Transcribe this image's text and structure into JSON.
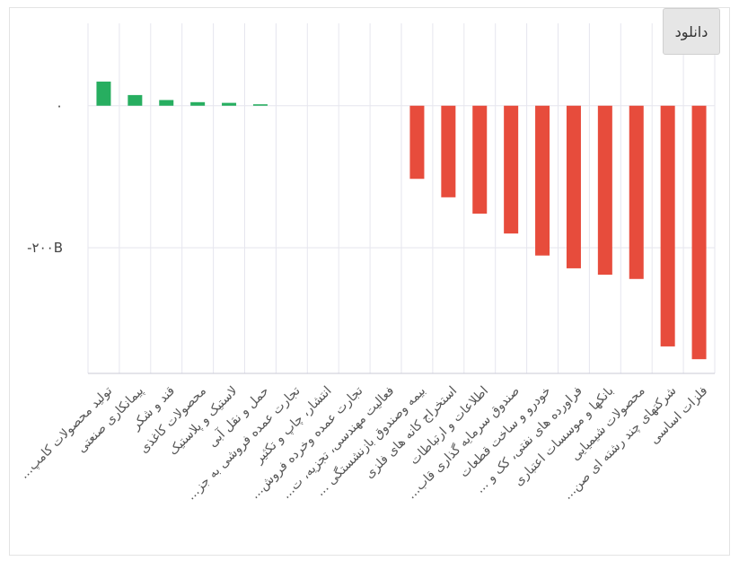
{
  "button": "دانلود",
  "chart_data": {
    "type": "bar",
    "categories": [
      "...تولید محصولات کامپ",
      "پیمانکاری صنعتی",
      "قند و شکر",
      "محصولات کاغذی",
      "لاستیک و پلاستیک",
      "حمل و نقل آبی",
      "...تجارت عمده فروشی به جز",
      "انتشار، چاپ و تکثیر",
      "...تجارت عمده وخرده فروش",
      "...فعالیت مهندسی، تجزیه، ت",
      "... بیمه وصندوق بازنشستگی",
      "استخراج کانه های فلزی",
      "اطلاعات و ارتباطات",
      "...صندوق سرمایه گذاری قاب",
      "خودرو و ساخت قطعات",
      "... فراورده های نفتی، کک و",
      "بانکها و موسسات اعتباری",
      "محصولات شیمیایی",
      "...شرکتهای چند رشته ای صن",
      "فلزات اساسی"
    ],
    "values": [
      34,
      15,
      8,
      5,
      4,
      2,
      0,
      0,
      0,
      0,
      -103,
      -129,
      -152,
      -180,
      -211,
      -229,
      -238,
      -244,
      -339,
      -357
    ],
    "positive_color": "#27ae60",
    "negative_color": "#e74c3c",
    "ylim": [
      -377,
      116
    ],
    "yticks": [
      {
        "value": 0,
        "label": "۰"
      },
      {
        "value": -200,
        "label": "-۲۰۰B"
      }
    ],
    "grid": true
  }
}
